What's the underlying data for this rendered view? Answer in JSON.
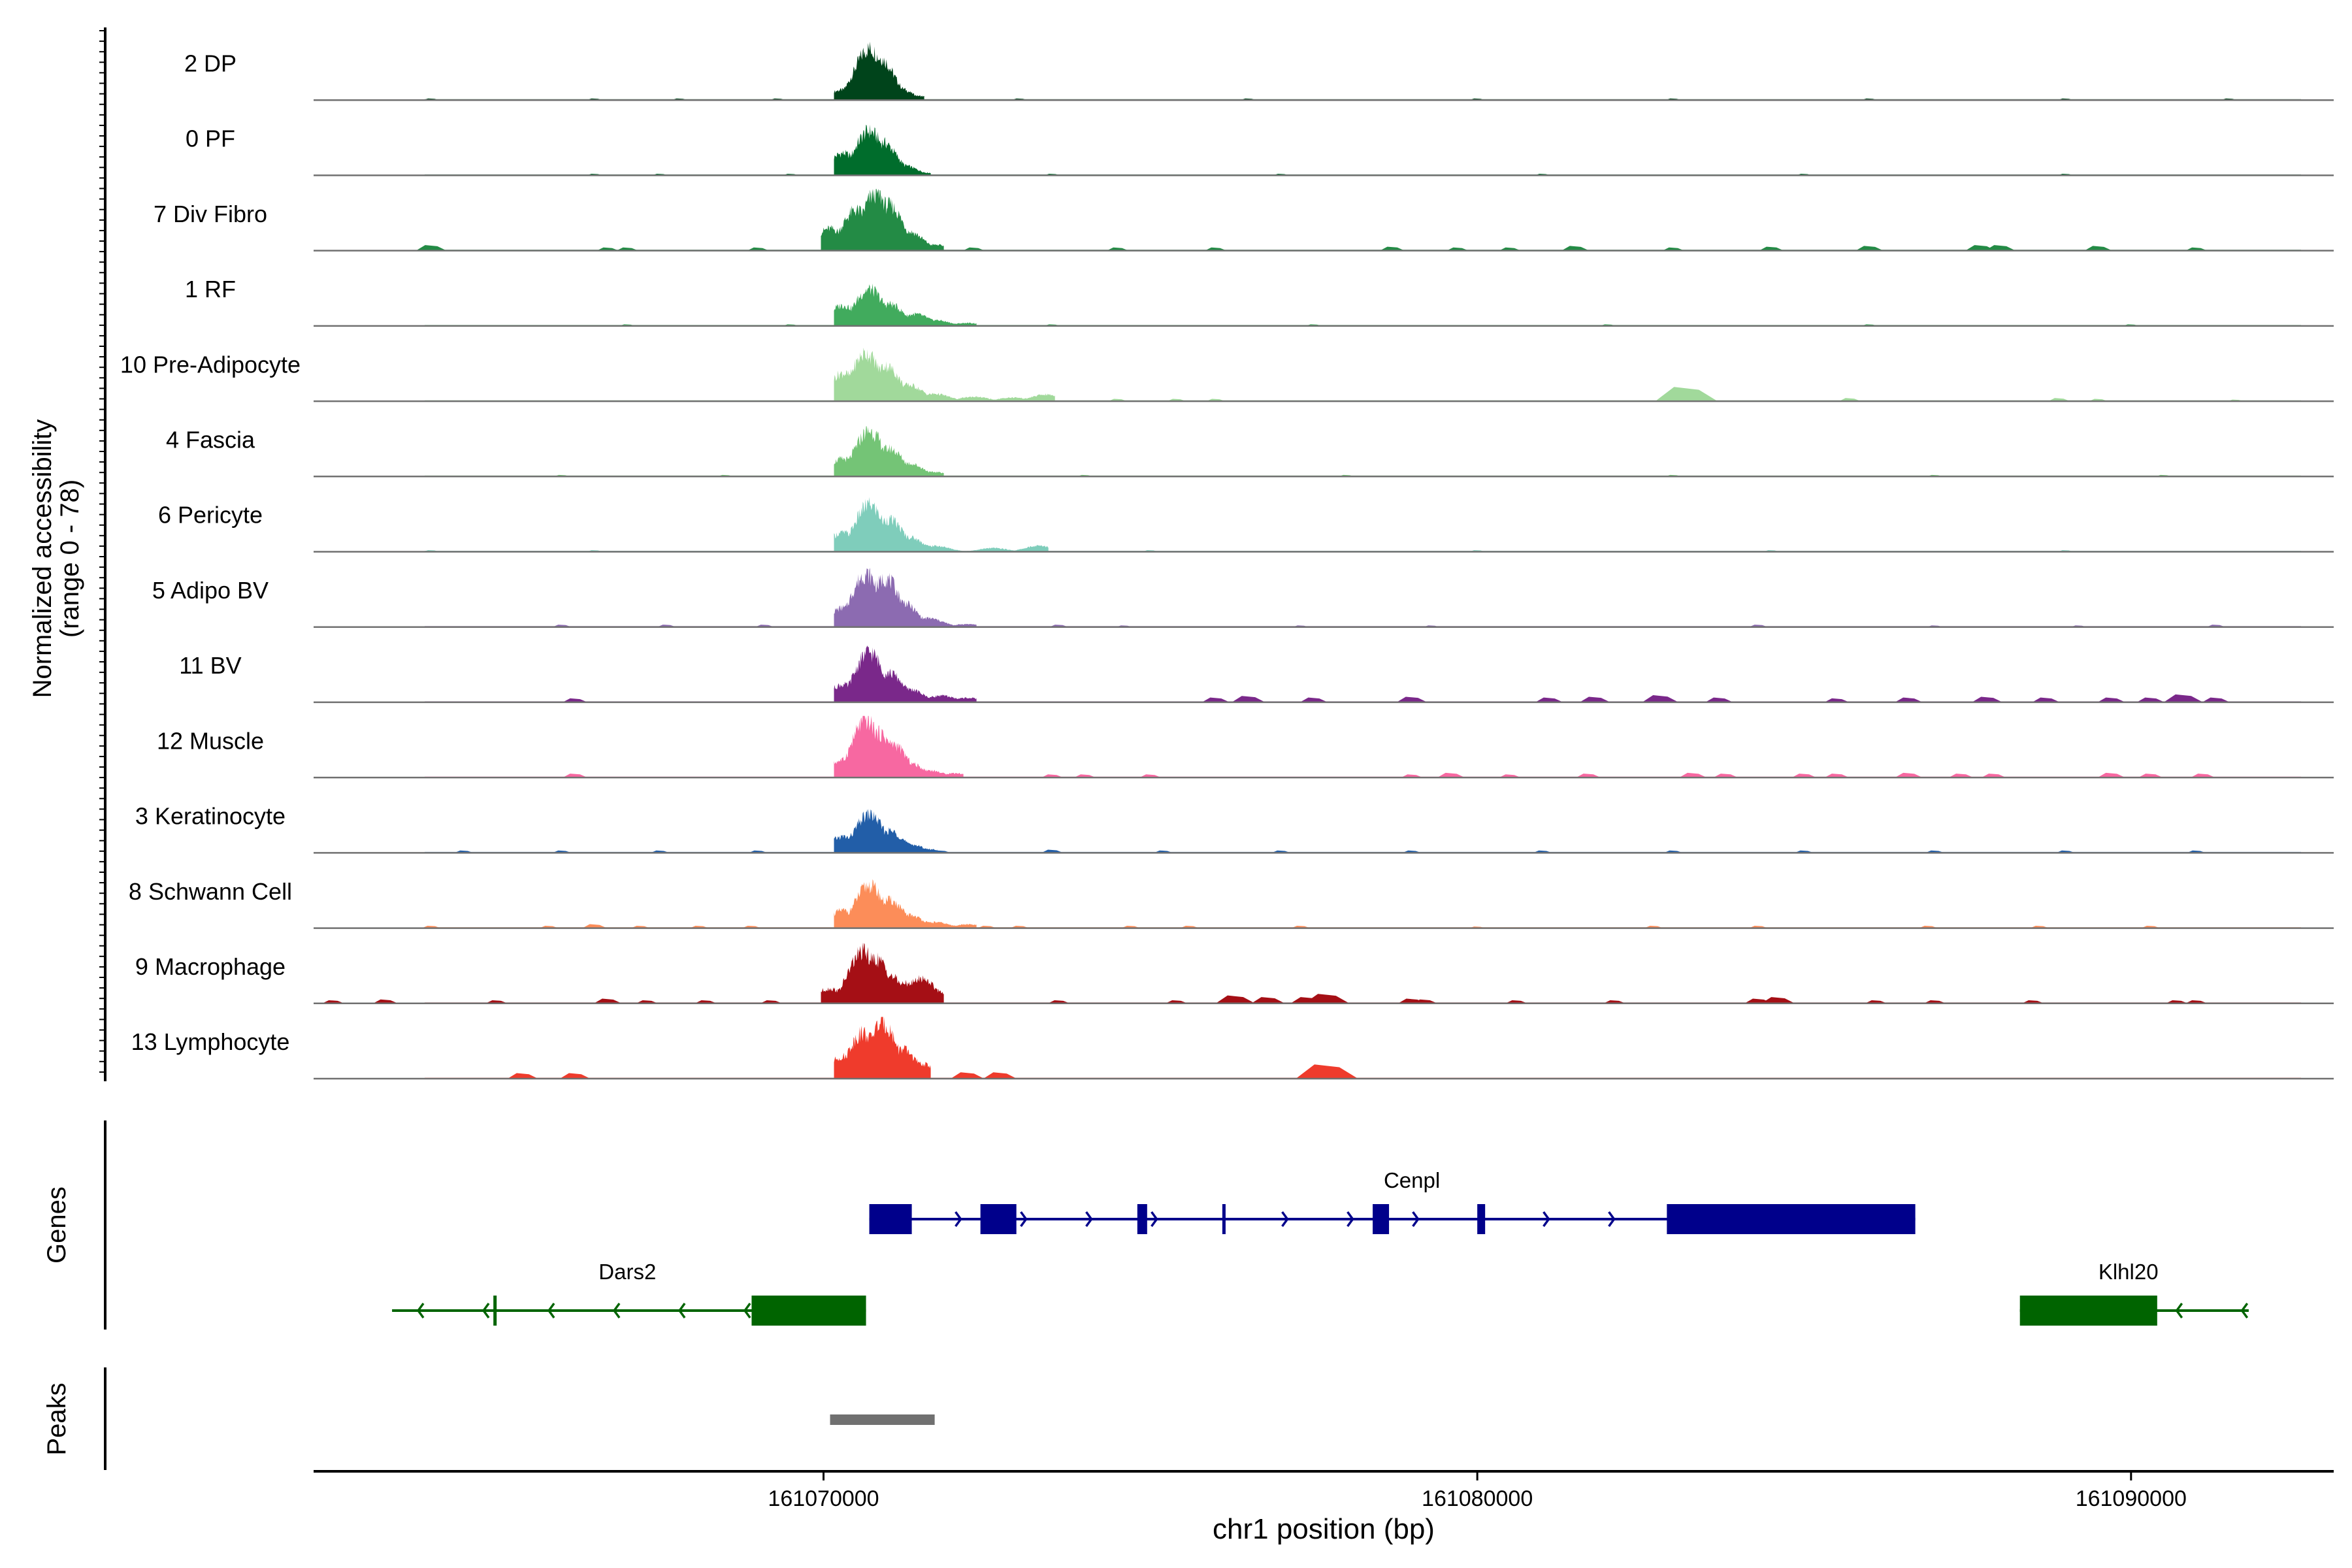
{
  "chart_data": {
    "type": "area",
    "ylabel_line1": "Normalized accessibility",
    "ylabel_line2": "(range 0 - 78)",
    "y_range": [
      0,
      78
    ],
    "xlabel": "chr1 position (bp)",
    "x_range": [
      161062200,
      161093100
    ],
    "x_ticks": [
      161070000,
      161080000,
      161090000
    ],
    "x_tick_labels": [
      "161070000",
      "161080000",
      "161090000"
    ],
    "tracks": [
      {
        "label": "2 DP",
        "color": "#00441b",
        "main": [
          [
            161070300,
            14
          ],
          [
            161070550,
            23
          ],
          [
            161070700,
            70
          ],
          [
            161070850,
            58
          ],
          [
            161071100,
            18
          ],
          [
            161071400,
            6
          ]
        ],
        "small": [
          [
            161064000,
            2
          ],
          [
            161066500,
            2
          ],
          [
            161067800,
            2
          ],
          [
            161069300,
            2
          ],
          [
            161073000,
            2
          ],
          [
            161076500,
            2
          ],
          [
            161080000,
            2
          ],
          [
            161083000,
            2
          ],
          [
            161086000,
            2
          ],
          [
            161089000,
            2
          ],
          [
            161091500,
            2
          ]
        ]
      },
      {
        "label": "0 PF",
        "color": "#006d2c",
        "main": [
          [
            161070300,
            30
          ],
          [
            161070700,
            60
          ],
          [
            161070900,
            45
          ],
          [
            161071200,
            14
          ],
          [
            161071500,
            4
          ]
        ],
        "small": [
          [
            161066500,
            2
          ],
          [
            161067500,
            2
          ],
          [
            161069500,
            2
          ],
          [
            161073500,
            2
          ],
          [
            161077000,
            2
          ],
          [
            161081000,
            2
          ],
          [
            161085000,
            2
          ],
          [
            161089000,
            2
          ]
        ]
      },
      {
        "label": "7 Div Fibro",
        "color": "#238b45",
        "main": [
          [
            161070100,
            30
          ],
          [
            161070500,
            55
          ],
          [
            161070800,
            78
          ],
          [
            161071000,
            62
          ],
          [
            161071300,
            26
          ],
          [
            161071700,
            8
          ]
        ],
        "small": [
          [
            161064000,
            7
          ],
          [
            161066700,
            4
          ],
          [
            161067000,
            4
          ],
          [
            161069000,
            4
          ],
          [
            161072300,
            4
          ],
          [
            161074500,
            4
          ],
          [
            161076000,
            4
          ],
          [
            161078700,
            5
          ],
          [
            161079700,
            4
          ],
          [
            161080500,
            4
          ],
          [
            161081500,
            6
          ],
          [
            161083000,
            4
          ],
          [
            161084500,
            5
          ],
          [
            161086000,
            6
          ],
          [
            161087700,
            7
          ],
          [
            161088000,
            7
          ],
          [
            161089500,
            6
          ],
          [
            161091000,
            4
          ]
        ]
      },
      {
        "label": "1 RF",
        "color": "#41ab5d",
        "main": [
          [
            161070300,
            28
          ],
          [
            161070700,
            50
          ],
          [
            161071000,
            30
          ],
          [
            161071400,
            16
          ],
          [
            161071700,
            8
          ],
          [
            161072200,
            4
          ]
        ],
        "small": [
          [
            161067000,
            2
          ],
          [
            161069500,
            2
          ],
          [
            161073500,
            2
          ],
          [
            161077500,
            2
          ],
          [
            161082000,
            2
          ],
          [
            161086000,
            2
          ],
          [
            161090000,
            2
          ]
        ]
      },
      {
        "label": "10 Pre-Adipocyte",
        "color": "#a1d99b",
        "main": [
          [
            161070300,
            38
          ],
          [
            161070650,
            65
          ],
          [
            161070950,
            48
          ],
          [
            161071300,
            22
          ],
          [
            161071700,
            10
          ],
          [
            161072300,
            6
          ],
          [
            161072900,
            5
          ],
          [
            161073400,
            9
          ]
        ],
        "small": [
          [
            161074500,
            3
          ],
          [
            161075400,
            3
          ],
          [
            161076000,
            3
          ],
          [
            161083200,
            18
          ],
          [
            161085700,
            4
          ],
          [
            161088900,
            4
          ],
          [
            161089500,
            3
          ],
          [
            161091600,
            2
          ]
        ]
      },
      {
        "label": "4 Fascia",
        "color": "#74c476",
        "main": [
          [
            161070300,
            24
          ],
          [
            161070700,
            62
          ],
          [
            161071000,
            38
          ],
          [
            161071300,
            18
          ],
          [
            161071700,
            6
          ]
        ],
        "small": [
          [
            161066000,
            2
          ],
          [
            161068500,
            2
          ],
          [
            161074000,
            2
          ],
          [
            161078000,
            2
          ],
          [
            161083000,
            2
          ],
          [
            161087000,
            2
          ],
          [
            161090500,
            2
          ]
        ]
      },
      {
        "label": "6 Pericyte",
        "color": "#7fcdbb",
        "main": [
          [
            161070300,
            26
          ],
          [
            161070700,
            64
          ],
          [
            161071000,
            44
          ],
          [
            161071300,
            20
          ],
          [
            161071700,
            8
          ],
          [
            161072600,
            5
          ],
          [
            161073300,
            8
          ]
        ],
        "small": [
          [
            161064000,
            2
          ],
          [
            161066500,
            2
          ],
          [
            161075000,
            2
          ],
          [
            161080000,
            2
          ],
          [
            161084500,
            2
          ],
          [
            161089000,
            2
          ]
        ]
      },
      {
        "label": "5 Adipo BV",
        "color": "#8c6bb1",
        "main": [
          [
            161070300,
            26
          ],
          [
            161070650,
            72
          ],
          [
            161070950,
            66
          ],
          [
            161071200,
            34
          ],
          [
            161071600,
            12
          ],
          [
            161072200,
            4
          ]
        ],
        "small": [
          [
            161066000,
            3
          ],
          [
            161067600,
            3
          ],
          [
            161069100,
            3
          ],
          [
            161073600,
            3
          ],
          [
            161074600,
            2
          ],
          [
            161077300,
            2
          ],
          [
            161079300,
            2
          ],
          [
            161084300,
            3
          ],
          [
            161087000,
            2
          ],
          [
            161089200,
            2
          ],
          [
            161091300,
            3
          ]
        ]
      },
      {
        "label": "11 BV",
        "color": "#7a288a",
        "main": [
          [
            161070300,
            24
          ],
          [
            161070700,
            68
          ],
          [
            161071000,
            40
          ],
          [
            161071300,
            18
          ],
          [
            161071800,
            9
          ],
          [
            161072200,
            6
          ]
        ],
        "small": [
          [
            161066200,
            5
          ],
          [
            161076000,
            6
          ],
          [
            161076500,
            8
          ],
          [
            161077500,
            6
          ],
          [
            161079000,
            7
          ],
          [
            161081100,
            6
          ],
          [
            161081800,
            7
          ],
          [
            161082800,
            9
          ],
          [
            161083700,
            6
          ],
          [
            161085500,
            5
          ],
          [
            161086600,
            6
          ],
          [
            161087800,
            7
          ],
          [
            161088700,
            6
          ],
          [
            161089700,
            6
          ],
          [
            161090300,
            6
          ],
          [
            161090800,
            10
          ],
          [
            161091300,
            6
          ]
        ]
      },
      {
        "label": "12 Muscle",
        "color": "#f768a1",
        "main": [
          [
            161070300,
            24
          ],
          [
            161070650,
            78
          ],
          [
            161070850,
            60
          ],
          [
            161071050,
            46
          ],
          [
            161071300,
            20
          ],
          [
            161071600,
            10
          ],
          [
            161072000,
            6
          ]
        ],
        "small": [
          [
            161066200,
            5
          ],
          [
            161073500,
            4
          ],
          [
            161074000,
            4
          ],
          [
            161075000,
            4
          ],
          [
            161079000,
            4
          ],
          [
            161079600,
            6
          ],
          [
            161080500,
            4
          ],
          [
            161081700,
            5
          ],
          [
            161083300,
            6
          ],
          [
            161083800,
            5
          ],
          [
            161085000,
            5
          ],
          [
            161085500,
            5
          ],
          [
            161086600,
            6
          ],
          [
            161087400,
            5
          ],
          [
            161087900,
            5
          ],
          [
            161089700,
            6
          ],
          [
            161090300,
            5
          ],
          [
            161091100,
            5
          ]
        ]
      },
      {
        "label": "3 Keratinocyte",
        "color": "#225ea8",
        "main": [
          [
            161070300,
            22
          ],
          [
            161070700,
            52
          ],
          [
            161071000,
            30
          ],
          [
            161071300,
            12
          ],
          [
            161071600,
            5
          ]
        ],
        "small": [
          [
            161064500,
            3
          ],
          [
            161066000,
            3
          ],
          [
            161067500,
            3
          ],
          [
            161069000,
            3
          ],
          [
            161071800,
            3
          ],
          [
            161073500,
            4
          ],
          [
            161075200,
            3
          ],
          [
            161077000,
            3
          ],
          [
            161079000,
            3
          ],
          [
            161081000,
            3
          ],
          [
            161083000,
            3
          ],
          [
            161085000,
            3
          ],
          [
            161087000,
            3
          ],
          [
            161089000,
            3
          ],
          [
            161091000,
            3
          ]
        ]
      },
      {
        "label": "8 Schwann Cell",
        "color": "#fc8d59",
        "main": [
          [
            161070300,
            24
          ],
          [
            161070700,
            58
          ],
          [
            161071000,
            38
          ],
          [
            161071300,
            18
          ],
          [
            161071700,
            8
          ],
          [
            161072200,
            5
          ]
        ],
        "small": [
          [
            161064000,
            3
          ],
          [
            161065800,
            3
          ],
          [
            161066500,
            5
          ],
          [
            161067200,
            3
          ],
          [
            161068100,
            3
          ],
          [
            161068900,
            3
          ],
          [
            161072500,
            3
          ],
          [
            161073000,
            3
          ],
          [
            161074700,
            3
          ],
          [
            161075600,
            3
          ],
          [
            161077300,
            3
          ],
          [
            161080000,
            2
          ],
          [
            161082700,
            3
          ],
          [
            161084300,
            3
          ],
          [
            161086900,
            3
          ],
          [
            161088600,
            3
          ],
          [
            161090300,
            3
          ]
        ]
      },
      {
        "label": "9 Macrophage",
        "color": "#a50f15",
        "main": [
          [
            161070100,
            20
          ],
          [
            161070600,
            70
          ],
          [
            161070800,
            60
          ],
          [
            161071000,
            38
          ],
          [
            161071300,
            28
          ],
          [
            161071500,
            34
          ],
          [
            161071700,
            18
          ]
        ],
        "small": [
          [
            161062500,
            4
          ],
          [
            161063300,
            5
          ],
          [
            161065000,
            4
          ],
          [
            161066700,
            6
          ],
          [
            161067300,
            4
          ],
          [
            161068200,
            4
          ],
          [
            161069200,
            4
          ],
          [
            161073600,
            4
          ],
          [
            161075400,
            4
          ],
          [
            161076300,
            10
          ],
          [
            161076800,
            8
          ],
          [
            161077400,
            8
          ],
          [
            161077700,
            12
          ],
          [
            161079000,
            6
          ],
          [
            161079200,
            5
          ],
          [
            161080600,
            4
          ],
          [
            161082100,
            4
          ],
          [
            161084300,
            6
          ],
          [
            161084600,
            8
          ],
          [
            161086100,
            4
          ],
          [
            161087000,
            4
          ],
          [
            161088500,
            4
          ],
          [
            161090700,
            4
          ],
          [
            161091000,
            4
          ]
        ]
      },
      {
        "label": "13 Lymphocyte",
        "color": "#ef3b2c",
        "main": [
          [
            161070300,
            30
          ],
          [
            161070600,
            62
          ],
          [
            161070900,
            76
          ],
          [
            161071200,
            40
          ],
          [
            161071500,
            20
          ]
        ],
        "small": [
          [
            161065400,
            7
          ],
          [
            161066200,
            7
          ],
          [
            161072200,
            8
          ],
          [
            161072700,
            8
          ],
          [
            161077700,
            18
          ]
        ]
      }
    ],
    "genes": {
      "title": "Genes",
      "color_plus": "#00008b",
      "color_minus": "#006400",
      "items": [
        {
          "name": "Cenpl",
          "strand": "+",
          "start": 161070700,
          "end": 161086700,
          "exons": [
            [
              161070700,
              161071350
            ],
            [
              161072400,
              161072950
            ],
            [
              161074800,
              161074950
            ],
            [
              161076100,
              161076150
            ],
            [
              161078400,
              161078650
            ],
            [
              161080000,
              161080120
            ],
            [
              161082900,
              161086700
            ]
          ]
        },
        {
          "name": "Dars2",
          "strand": "-",
          "start": 161063400,
          "end": 161070650,
          "exons": [
            [
              161064950,
              161065000
            ],
            [
              161068900,
              161070650
            ]
          ]
        },
        {
          "name": "Klhl20",
          "strand": "-",
          "start": 161088300,
          "end": 161091800,
          "exons": [
            [
              161088300,
              161090400
            ]
          ]
        }
      ]
    },
    "peaks": {
      "title": "Peaks",
      "color": "#707070",
      "items": [
        [
          161070100,
          161071700
        ]
      ]
    }
  }
}
